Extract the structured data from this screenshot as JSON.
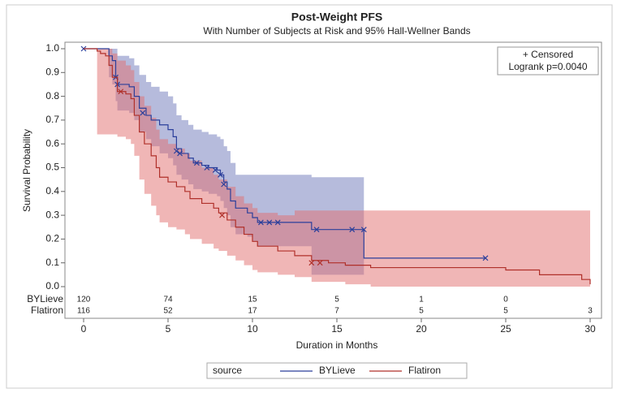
{
  "chart_data": {
    "type": "km",
    "title": "Post-Weight PFS",
    "subtitle": "With Number of Subjects at Risk and 95% Hall-Wellner Bands",
    "xlabel": "Duration in Months",
    "ylabel": "Survival Probability",
    "xlim": [
      0,
      30
    ],
    "ylim": [
      0,
      1
    ],
    "xticks": [
      0,
      5,
      10,
      15,
      20,
      25,
      30
    ],
    "yticks": [
      {
        "value": 0,
        "label": "0.0"
      },
      0.1,
      0.2,
      0.3,
      0.4,
      0.5,
      0.6,
      0.7,
      0.8,
      0.9,
      {
        "value": 1,
        "label": "1.0"
      }
    ],
    "legend_title": "source",
    "inset": [
      "+ Censored",
      "Logrank p=0.0040"
    ],
    "at_risk_x": [
      0,
      5,
      10,
      15,
      20,
      25,
      30
    ],
    "series": [
      {
        "name": "BYLieve",
        "color": "#2b3f9b",
        "band_color": "rgba(110,120,185,0.5)",
        "x": [
          0,
          1.5,
          1.7,
          1.9,
          2.0,
          2.7,
          3.0,
          3.3,
          3.7,
          4.0,
          4.5,
          5.0,
          5.3,
          5.5,
          5.8,
          6.2,
          6.5,
          7.0,
          7.4,
          7.9,
          8.1,
          8.3,
          8.5,
          8.7,
          9.0,
          9.7,
          10.0,
          10.3,
          13.5,
          16.6,
          23.8
        ],
        "values": [
          1.0,
          0.97,
          0.95,
          0.88,
          0.85,
          0.84,
          0.8,
          0.75,
          0.72,
          0.7,
          0.68,
          0.66,
          0.63,
          0.58,
          0.56,
          0.54,
          0.52,
          0.51,
          0.5,
          0.49,
          0.47,
          0.44,
          0.41,
          0.36,
          0.33,
          0.31,
          0.29,
          0.27,
          0.24,
          0.12,
          0.12
        ],
        "upper": [
          1.0,
          1.0,
          1.0,
          1.0,
          0.97,
          0.96,
          0.93,
          0.89,
          0.86,
          0.84,
          0.82,
          0.8,
          0.77,
          0.72,
          0.7,
          0.68,
          0.66,
          0.65,
          0.64,
          0.63,
          0.62,
          0.59,
          0.57,
          0.52,
          0.47,
          0.47,
          0.47,
          0.47,
          0.46,
          null,
          null
        ],
        "lower": [
          1.0,
          0.88,
          0.85,
          0.78,
          0.74,
          0.73,
          0.7,
          0.65,
          0.62,
          0.59,
          0.56,
          0.54,
          0.51,
          0.47,
          0.45,
          0.43,
          0.41,
          0.4,
          0.39,
          0.38,
          0.36,
          0.33,
          0.3,
          0.25,
          0.22,
          0.21,
          0.19,
          0.17,
          0.05,
          null,
          null
        ],
        "censored_x": [
          0,
          1.9,
          2.0,
          3.5,
          5.5,
          5.7,
          6.7,
          7.3,
          7.8,
          8.1,
          8.3,
          10.5,
          11.0,
          11.5,
          13.8,
          15.9,
          16.6,
          23.8
        ],
        "censored_values": [
          1.0,
          0.88,
          0.85,
          0.73,
          0.57,
          0.56,
          0.52,
          0.5,
          0.49,
          0.47,
          0.43,
          0.27,
          0.27,
          0.27,
          0.24,
          0.24,
          0.24,
          0.12
        ],
        "at_risk": [
          120,
          74,
          15,
          5,
          1,
          0,
          null
        ]
      },
      {
        "name": "Flatiron",
        "color": "#b0302a",
        "band_color": "rgba(225,110,110,0.5)",
        "x": [
          0,
          0.8,
          1.0,
          1.3,
          1.5,
          1.7,
          2.0,
          2.5,
          2.8,
          3.0,
          3.3,
          3.6,
          4.0,
          4.3,
          4.5,
          5.0,
          5.5,
          6.0,
          6.3,
          7.0,
          7.7,
          8.0,
          8.5,
          9.0,
          9.5,
          10.0,
          10.3,
          11.5,
          12.5,
          13.5,
          14.5,
          15.5,
          17.0,
          25.0,
          27.0,
          29.5,
          30.0
        ],
        "values": [
          1.0,
          0.99,
          0.98,
          0.97,
          0.93,
          0.88,
          0.82,
          0.81,
          0.79,
          0.72,
          0.65,
          0.6,
          0.55,
          0.5,
          0.46,
          0.44,
          0.42,
          0.4,
          0.37,
          0.35,
          0.33,
          0.31,
          0.28,
          0.25,
          0.22,
          0.19,
          0.17,
          0.15,
          0.13,
          0.11,
          0.1,
          0.09,
          0.08,
          0.07,
          0.05,
          0.03,
          0.01
        ],
        "upper": [
          null,
          1.0,
          1.0,
          1.0,
          1.0,
          0.98,
          0.95,
          0.93,
          0.91,
          0.86,
          0.8,
          0.76,
          0.71,
          0.66,
          0.62,
          0.6,
          0.58,
          0.56,
          0.53,
          0.5,
          0.47,
          0.45,
          0.42,
          0.38,
          0.35,
          0.33,
          0.31,
          0.3,
          0.32,
          0.32,
          0.32,
          0.32,
          0.32,
          0.32,
          0.32,
          0.32,
          0.32
        ],
        "lower": [
          null,
          0.64,
          0.64,
          0.64,
          0.64,
          0.64,
          0.63,
          0.62,
          0.6,
          0.55,
          0.45,
          0.39,
          0.34,
          0.3,
          0.27,
          0.25,
          0.24,
          0.22,
          0.2,
          0.18,
          0.16,
          0.15,
          0.13,
          0.11,
          0.09,
          0.07,
          0.06,
          0.05,
          0.04,
          0.02,
          0.02,
          0.01,
          0.0,
          0.0,
          0.0,
          0.0,
          0.0
        ],
        "censored_x": [
          2.2,
          8.2,
          13.5,
          14.0
        ],
        "censored_values": [
          0.82,
          0.3,
          0.1,
          0.1
        ],
        "at_risk": [
          116,
          52,
          17,
          7,
          5,
          5,
          3
        ]
      }
    ]
  }
}
